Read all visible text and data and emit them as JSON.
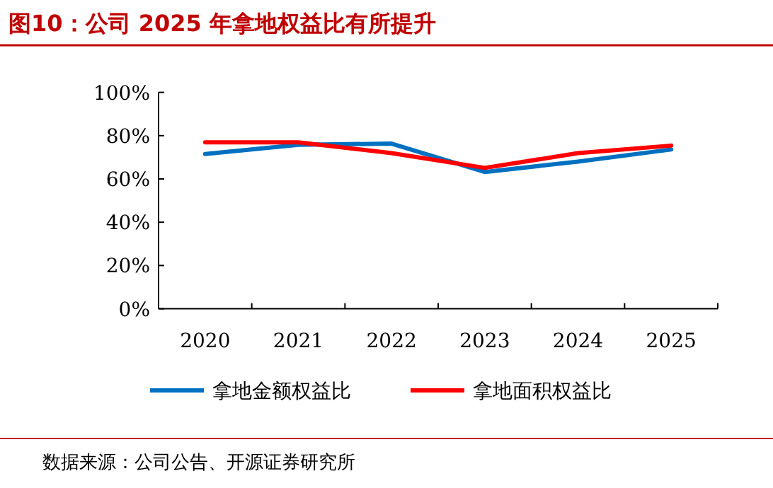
{
  "chart_data": {
    "type": "line",
    "title": "图10：公司 2025 年拿地权益比有所提升",
    "categories": [
      "2020",
      "2021",
      "2022",
      "2023",
      "2024",
      "2025"
    ],
    "series": [
      {
        "name": "拿地金额权益比",
        "color": "#0070c0",
        "values": [
          71.5,
          75.8,
          76.3,
          63.2,
          68,
          73.6
        ]
      },
      {
        "name": "拿地面积权益比",
        "color": "#ff0000",
        "values": [
          76.9,
          76.9,
          71.9,
          65.1,
          71.9,
          75.4
        ]
      }
    ],
    "ylim": [
      0,
      100
    ],
    "yticks": [
      {
        "value": 0,
        "label": "0%"
      },
      {
        "value": 20,
        "label": "20%"
      },
      {
        "value": 40,
        "label": "40%"
      },
      {
        "value": 60,
        "label": "60%"
      },
      {
        "value": 80,
        "label": "80%"
      },
      {
        "value": 100,
        "label": "100%"
      }
    ],
    "grid": false,
    "legend": "bottom",
    "marker": "none",
    "line_style": "solid",
    "annotations": [
      "数据来源：公司公告、开源证券研究所"
    ]
  }
}
